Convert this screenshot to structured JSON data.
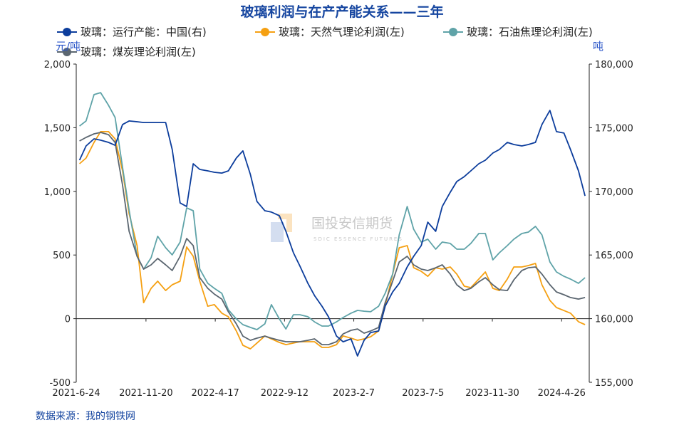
{
  "chart_data": {
    "type": "line",
    "title": "玻璃利润与在产产能关系——三年",
    "y_left_label": "元/吨",
    "y_right_label": "吨",
    "ylim_left": [
      -500,
      2000
    ],
    "ylim_right": [
      155000,
      180000
    ],
    "xlim": [
      "2021-06-24",
      "2024-06-24"
    ],
    "y_left_ticks": [
      "2,000",
      "1,500",
      "1,000",
      "500",
      "0",
      "-500"
    ],
    "y_right_ticks": [
      "180,000",
      "175,000",
      "170,000",
      "165,000",
      "160,000",
      "155,000"
    ],
    "x_ticks": [
      "2021-6-24",
      "2021-11-20",
      "2022-4-17",
      "2022-9-12",
      "2023-2-7",
      "2023-7-5",
      "2023-11-30",
      "2024-4-26"
    ],
    "grid": false,
    "legend_position": "top",
    "source": "数据来源：我的钢铁网",
    "watermark": {
      "cn": "国投安信期货",
      "en": "SDIC ESSENCE FUTURES"
    },
    "dates": [
      "2021-07-01",
      "2021-07-15",
      "2021-08-01",
      "2021-08-15",
      "2021-09-01",
      "2021-09-15",
      "2021-10-01",
      "2021-10-15",
      "2021-11-01",
      "2021-11-15",
      "2021-12-01",
      "2021-12-15",
      "2022-01-01",
      "2022-01-15",
      "2022-02-01",
      "2022-02-15",
      "2022-03-01",
      "2022-03-15",
      "2022-04-01",
      "2022-04-15",
      "2022-05-01",
      "2022-05-15",
      "2022-06-01",
      "2022-06-15",
      "2022-07-01",
      "2022-07-15",
      "2022-08-01",
      "2022-08-15",
      "2022-09-01",
      "2022-09-15",
      "2022-10-01",
      "2022-10-15",
      "2022-11-01",
      "2022-11-15",
      "2022-12-01",
      "2022-12-15",
      "2023-01-01",
      "2023-01-15",
      "2023-02-01",
      "2023-02-15",
      "2023-03-01",
      "2023-03-15",
      "2023-04-01",
      "2023-04-15",
      "2023-05-01",
      "2023-05-15",
      "2023-06-01",
      "2023-06-15",
      "2023-07-01",
      "2023-07-15",
      "2023-08-01",
      "2023-08-15",
      "2023-09-01",
      "2023-09-15",
      "2023-10-01",
      "2023-10-15",
      "2023-11-01",
      "2023-11-15",
      "2023-12-01",
      "2023-12-15",
      "2024-01-01",
      "2024-01-15",
      "2024-02-01",
      "2024-02-15",
      "2024-03-01",
      "2024-03-15",
      "2024-04-01",
      "2024-04-15",
      "2024-05-01",
      "2024-05-15",
      "2024-06-01",
      "2024-06-15"
    ],
    "series": [
      {
        "name": "玻璃：运行产能：中国(右)",
        "axis": "right",
        "color": "#0c3d9c",
        "values": [
          172450,
          173570,
          174130,
          174020,
          173850,
          173620,
          175250,
          175530,
          175470,
          175410,
          175410,
          175410,
          175410,
          173290,
          169090,
          168810,
          172170,
          171720,
          171610,
          171500,
          171440,
          171610,
          172620,
          173180,
          171330,
          169210,
          168480,
          168370,
          168090,
          166860,
          165180,
          164120,
          162770,
          161820,
          160980,
          160140,
          158630,
          158180,
          158410,
          157070,
          158300,
          158910,
          159030,
          160980,
          162100,
          162770,
          164060,
          164900,
          165740,
          167580,
          166860,
          168810,
          169930,
          170770,
          171160,
          171610,
          172170,
          172450,
          173010,
          173290,
          173850,
          173680,
          173570,
          173680,
          173850,
          175250,
          176360,
          174690,
          174580,
          173290,
          171610,
          169650
        ]
      },
      {
        "name": "玻璃：天然气理论利润(左)",
        "axis": "left",
        "color": "#f5a012",
        "values": [
          1217,
          1262,
          1385,
          1469,
          1469,
          1413,
          1161,
          825,
          574,
          126,
          238,
          294,
          221,
          266,
          294,
          563,
          490,
          294,
          98,
          110,
          43,
          15,
          -97,
          -209,
          -237,
          -192,
          -136,
          -159,
          -187,
          -204,
          -192,
          -181,
          -181,
          -181,
          -226,
          -226,
          -204,
          -136,
          -153,
          -170,
          -159,
          -142,
          -97,
          98,
          350,
          557,
          574,
          400,
          372,
          333,
          400,
          389,
          406,
          350,
          255,
          244,
          311,
          367,
          238,
          221,
          311,
          406,
          406,
          417,
          434,
          266,
          143,
          87,
          64,
          43,
          -24,
          -47
        ]
      },
      {
        "name": "玻璃：石油焦理论利润(左)",
        "axis": "left",
        "color": "#5fa3a8",
        "values": [
          1513,
          1553,
          1760,
          1776,
          1676,
          1581,
          1189,
          853,
          490,
          389,
          479,
          647,
          557,
          501,
          602,
          870,
          848,
          389,
          278,
          238,
          199,
          70,
          -2,
          -47,
          -69,
          -86,
          -41,
          110,
          -2,
          -81,
          31,
          31,
          15,
          -25,
          -58,
          -58,
          -25,
          9,
          43,
          65,
          59,
          54,
          98,
          199,
          350,
          658,
          881,
          702,
          602,
          624,
          546,
          602,
          591,
          546,
          546,
          591,
          669,
          669,
          462,
          518,
          574,
          624,
          669,
          680,
          725,
          658,
          445,
          367,
          333,
          311,
          278,
          322
        ]
      },
      {
        "name": "玻璃：煤炭理论利润(左)",
        "axis": "left",
        "color": "#5b6670",
        "values": [
          1396,
          1424,
          1452,
          1463,
          1446,
          1385,
          1049,
          686,
          490,
          389,
          423,
          473,
          423,
          378,
          490,
          630,
          574,
          322,
          238,
          193,
          154,
          54,
          -41,
          -137,
          -170,
          -153,
          -137,
          -153,
          -170,
          -181,
          -181,
          -181,
          -170,
          -159,
          -204,
          -204,
          -181,
          -120,
          -92,
          -81,
          -114,
          -97,
          -69,
          126,
          294,
          445,
          490,
          423,
          389,
          378,
          400,
          423,
          350,
          266,
          221,
          238,
          289,
          322,
          266,
          227,
          221,
          305,
          378,
          400,
          406,
          350,
          266,
          210,
          188,
          166,
          154,
          166
        ]
      }
    ]
  }
}
